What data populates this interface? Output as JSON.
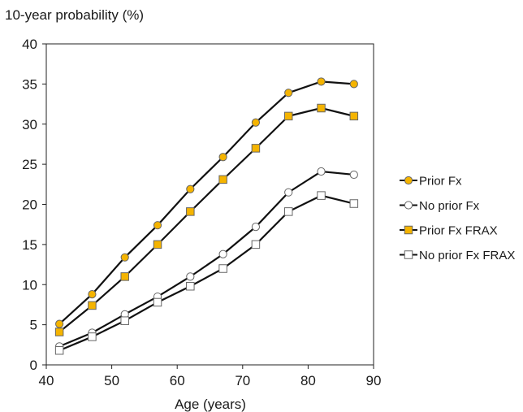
{
  "chart_data": {
    "type": "line",
    "ylabel": "10-year probability (%)",
    "xlabel": "Age (years)",
    "xlim": [
      40,
      90
    ],
    "ylim": [
      0,
      40
    ],
    "xticks": [
      40,
      50,
      60,
      70,
      80,
      90
    ],
    "yticks": [
      0,
      5,
      10,
      15,
      20,
      25,
      30,
      35,
      40
    ],
    "grid": false,
    "legend_position": "right",
    "x": [
      42,
      47,
      52,
      57,
      62,
      67,
      72,
      77,
      82,
      87
    ],
    "series": [
      {
        "name": "Prior Fx",
        "marker": "circle",
        "fill": "#f5b400",
        "values": [
          5.1,
          8.8,
          13.4,
          17.4,
          21.9,
          25.9,
          30.2,
          33.9,
          35.3,
          35.0
        ]
      },
      {
        "name": "No prior Fx",
        "marker": "circle",
        "fill": "#ffffff",
        "values": [
          2.3,
          4.0,
          6.3,
          8.5,
          11.0,
          13.8,
          17.2,
          21.5,
          24.1,
          23.7
        ]
      },
      {
        "name": "Prior Fx FRAX",
        "marker": "square",
        "fill": "#f5b400",
        "values": [
          4.1,
          7.4,
          11.0,
          15.0,
          19.1,
          23.1,
          27.0,
          31.0,
          32.0,
          31.0
        ]
      },
      {
        "name": "No prior Fx FRAX",
        "marker": "square",
        "fill": "#ffffff",
        "values": [
          1.8,
          3.5,
          5.5,
          7.8,
          9.8,
          12.0,
          15.0,
          19.1,
          21.1,
          20.1
        ]
      }
    ]
  }
}
